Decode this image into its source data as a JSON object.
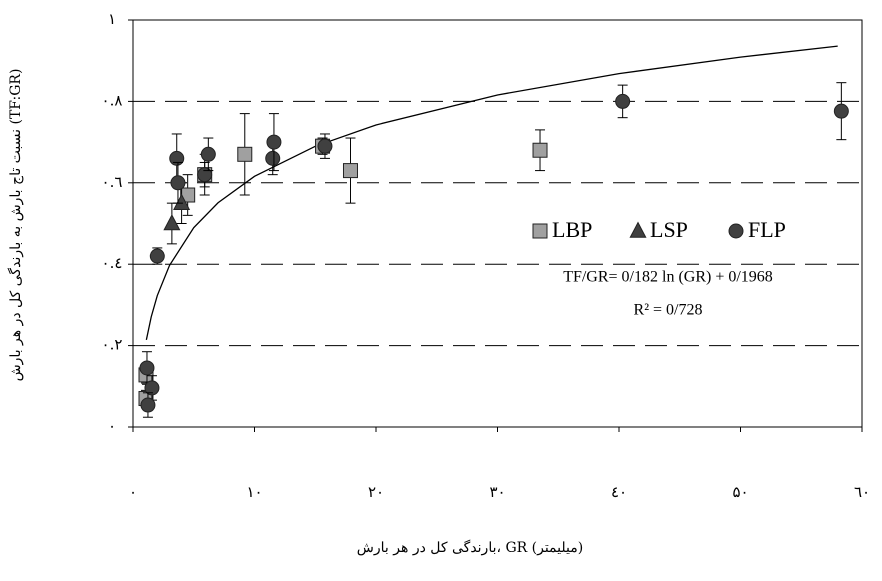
{
  "chart_data": {
    "type": "scatter",
    "x_label": "بارندگی کل در هر بارش، GR (میلیمتر)",
    "y_label": "نسبت تاج بارش به بارندگی کل در هر بارش (TF:GR)",
    "xlim": [
      0,
      60
    ],
    "ylim": [
      0,
      1
    ],
    "xticks": [
      {
        "value": 0,
        "label": "۰"
      },
      {
        "value": 10,
        "label": "۱۰"
      },
      {
        "value": 20,
        "label": "۲۰"
      },
      {
        "value": 30,
        "label": "۳۰"
      },
      {
        "value": 40,
        "label": "٤۰"
      },
      {
        "value": 50,
        "label": "۵۰"
      },
      {
        "value": 60,
        "label": "٦۰"
      }
    ],
    "yticks": [
      {
        "value": 0,
        "label": "۰"
      },
      {
        "value": 0.2,
        "label": "۰.۲"
      },
      {
        "value": 0.4,
        "label": "۰.٤"
      },
      {
        "value": 0.6,
        "label": "۰.٦"
      },
      {
        "value": 0.8,
        "label": "۰.۸"
      },
      {
        "value": 1,
        "label": "۱"
      }
    ],
    "grid": true,
    "series": [
      {
        "name": "LBP",
        "color": "#a0a0a0",
        "marker": "square",
        "x": [
          1.07,
          1.07,
          4.5,
          5.9,
          9.2,
          15.6,
          17.9,
          33.5
        ],
        "values": [
          0.128,
          0.07,
          0.57,
          0.62,
          0.67,
          0.69,
          0.63,
          0.68
        ],
        "errors": [
          0.02,
          0.02,
          0.05,
          0.03,
          0.1,
          0.02,
          0.08,
          0.05
        ]
      },
      {
        "name": "LSP",
        "color": "#404040",
        "marker": "triangle",
        "x": [
          3.2,
          4.0
        ],
        "values": [
          0.5,
          0.55
        ],
        "errors": [
          0.05,
          0.05
        ]
      },
      {
        "name": "FLP",
        "color": "#404040",
        "marker": "circle",
        "x": [
          2.0,
          1.15,
          1.56,
          1.23,
          3.6,
          3.7,
          5.9,
          6.2,
          11.5,
          11.6,
          15.8,
          40.3,
          58.3
        ],
        "values": [
          0.42,
          0.145,
          0.096,
          0.054,
          0.66,
          0.6,
          0.62,
          0.67,
          0.66,
          0.7,
          0.69,
          0.8,
          0.776
        ],
        "errors": [
          0.02,
          0.04,
          0.03,
          0.03,
          0.06,
          0.05,
          0.05,
          0.04,
          0.04,
          0.07,
          0.03,
          0.04,
          0.07
        ]
      }
    ],
    "fit": {
      "color": "#000000",
      "x": [
        1.1,
        1.5,
        2,
        3,
        5,
        7,
        10,
        15,
        20,
        30,
        40,
        50,
        58
      ],
      "values": [
        0.2141,
        0.2706,
        0.323,
        0.3968,
        0.4897,
        0.551,
        0.6159,
        0.6897,
        0.7421,
        0.8158,
        0.8682,
        0.9088,
        0.9358
      ]
    },
    "equation": "TF/GR= 0/182 ln (GR) + 0/1968",
    "r_squared": "R² = 0/728"
  }
}
